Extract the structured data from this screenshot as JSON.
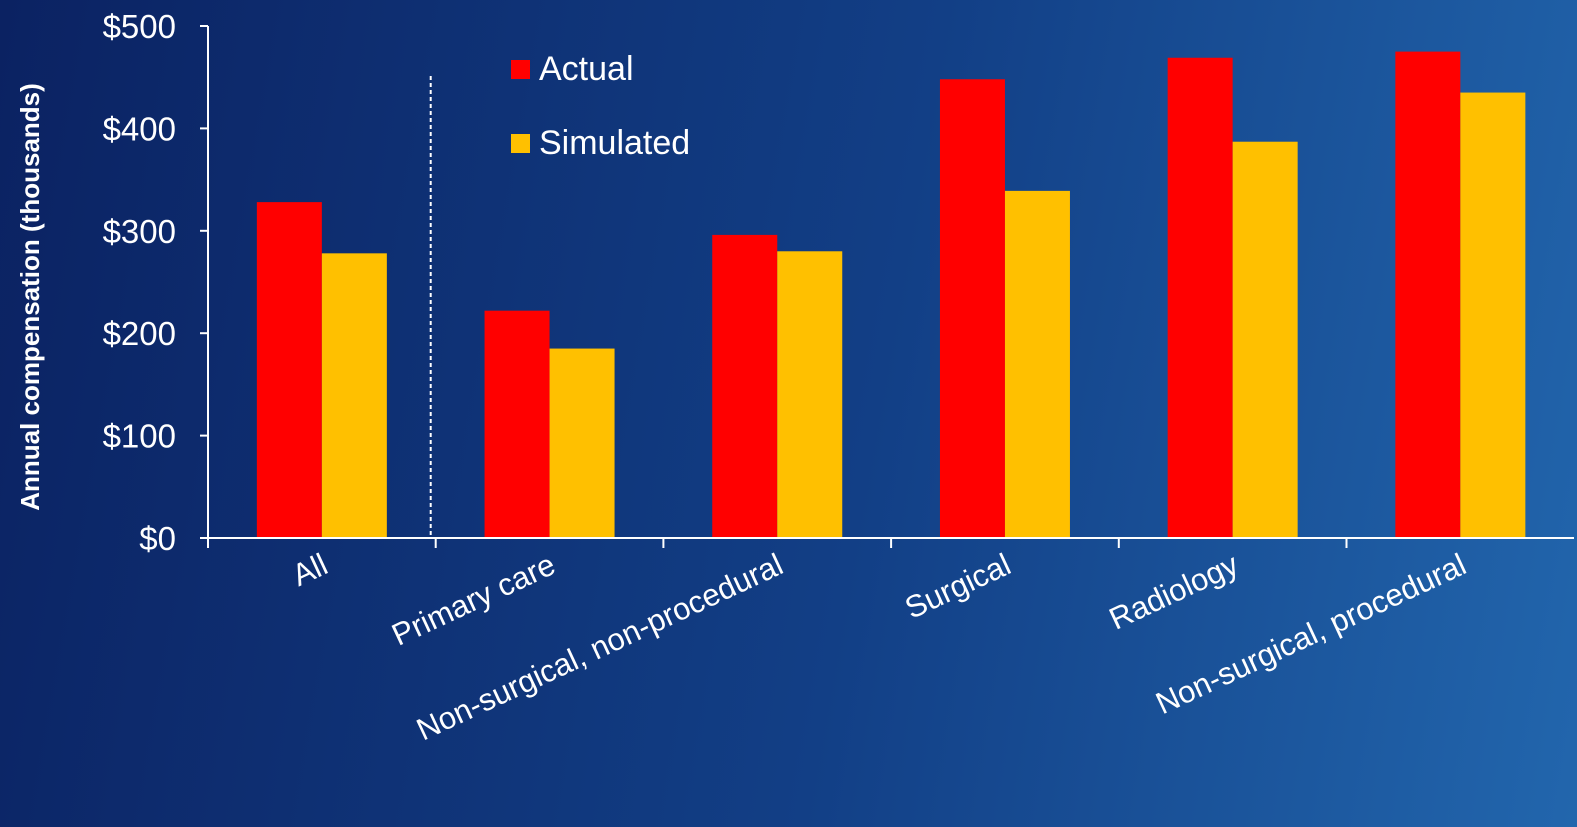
{
  "chart_data": {
    "type": "bar",
    "ylabel": "Annual compensation (thousands)",
    "ylim": [
      0,
      500
    ],
    "yticks": [
      {
        "value": 0,
        "label": "$0"
      },
      {
        "value": 100,
        "label": "$100"
      },
      {
        "value": 200,
        "label": "$200"
      },
      {
        "value": 300,
        "label": "$300"
      },
      {
        "value": 400,
        "label": "$400"
      },
      {
        "value": 500,
        "label": "$500"
      }
    ],
    "categories": [
      "All",
      "Primary care",
      "Non-surgical, non-procedural",
      "Surgical",
      "Radiology",
      "Non-surgical, procedural"
    ],
    "series": [
      {
        "name": "Actual",
        "color": "#ff0000",
        "values": [
          328,
          222,
          296,
          448,
          469,
          475
        ]
      },
      {
        "name": "Simulated",
        "color": "#ffc000",
        "values": [
          278,
          185,
          280,
          339,
          387,
          435
        ]
      }
    ],
    "legend_position": "top-left",
    "divider_after_category": "All",
    "grid": false
  }
}
